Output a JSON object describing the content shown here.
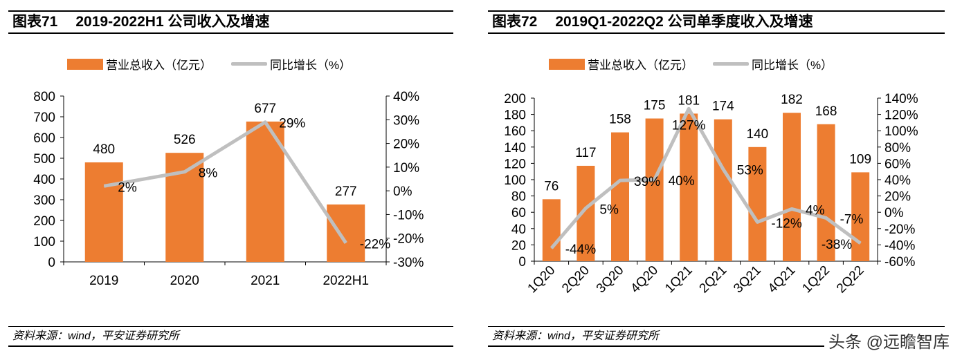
{
  "colors": {
    "bar": "#ED7D31",
    "line": "#BFBFBF"
  },
  "watermark": "头条 @远瞻智库",
  "chart_data": [
    {
      "type": "bar+line",
      "fig_num": "图表71",
      "title": "2019-2022H1 公司收入及增速",
      "legend": {
        "bar": "营业总收入（亿元）",
        "line": "同比增长（%）"
      },
      "categories": [
        "2019",
        "2020",
        "2021",
        "2022H1"
      ],
      "series": [
        {
          "name": "营业总收入（亿元）",
          "type": "bar",
          "axis": "left",
          "values": [
            480,
            526,
            677,
            277
          ],
          "labels": [
            "480",
            "526",
            "677",
            "277"
          ]
        },
        {
          "name": "同比增长（%）",
          "type": "line",
          "axis": "right",
          "values": [
            2,
            8,
            29,
            -22
          ],
          "labels": [
            "2%",
            "8%",
            "29%",
            "-22%"
          ]
        }
      ],
      "yleft": {
        "lim": [
          0,
          800
        ],
        "ticks": [
          "0",
          "100",
          "200",
          "300",
          "400",
          "500",
          "600",
          "700",
          "800"
        ]
      },
      "yright": {
        "lim": [
          -30,
          40
        ],
        "ticks": [
          "-30%",
          "-20%",
          "-10%",
          "0%",
          "10%",
          "20%",
          "30%",
          "40%"
        ]
      },
      "source": "资料来源：wind，平安证券研究所"
    },
    {
      "type": "bar+line",
      "fig_num": "图表72",
      "title": "2019Q1-2022Q2 公司单季度收入及增速",
      "legend": {
        "bar": "营业总收入（亿元）",
        "line": "同比增长（%）"
      },
      "categories": [
        "1Q20",
        "2Q20",
        "3Q20",
        "4Q20",
        "1Q21",
        "2Q21",
        "3Q21",
        "4Q21",
        "1Q22",
        "2Q22"
      ],
      "series": [
        {
          "name": "营业总收入（亿元）",
          "type": "bar",
          "axis": "left",
          "values": [
            76,
            117,
            158,
            175,
            181,
            174,
            140,
            182,
            168,
            109
          ],
          "labels": [
            "76",
            "117",
            "158",
            "175",
            "181",
            "174",
            "140",
            "182",
            "168",
            "109"
          ]
        },
        {
          "name": "同比增长（%）",
          "type": "line",
          "axis": "right",
          "values": [
            -44,
            5,
            39,
            40,
            127,
            53,
            -12,
            4,
            -7,
            -38
          ],
          "labels": [
            "-44%",
            "5%",
            "39%",
            "40%",
            "127%",
            "53%",
            "-12%",
            "4%",
            "-7%",
            "-38%"
          ]
        }
      ],
      "yleft": {
        "lim": [
          0,
          200
        ],
        "ticks": [
          "0",
          "20",
          "40",
          "60",
          "80",
          "100",
          "120",
          "140",
          "160",
          "180",
          "200"
        ]
      },
      "yright": {
        "lim": [
          -60,
          140
        ],
        "ticks": [
          "-60%",
          "-40%",
          "-20%",
          "0%",
          "20%",
          "40%",
          "60%",
          "80%",
          "100%",
          "120%",
          "140%"
        ]
      },
      "source": "资料来源：wind，平安证券研究所"
    }
  ]
}
